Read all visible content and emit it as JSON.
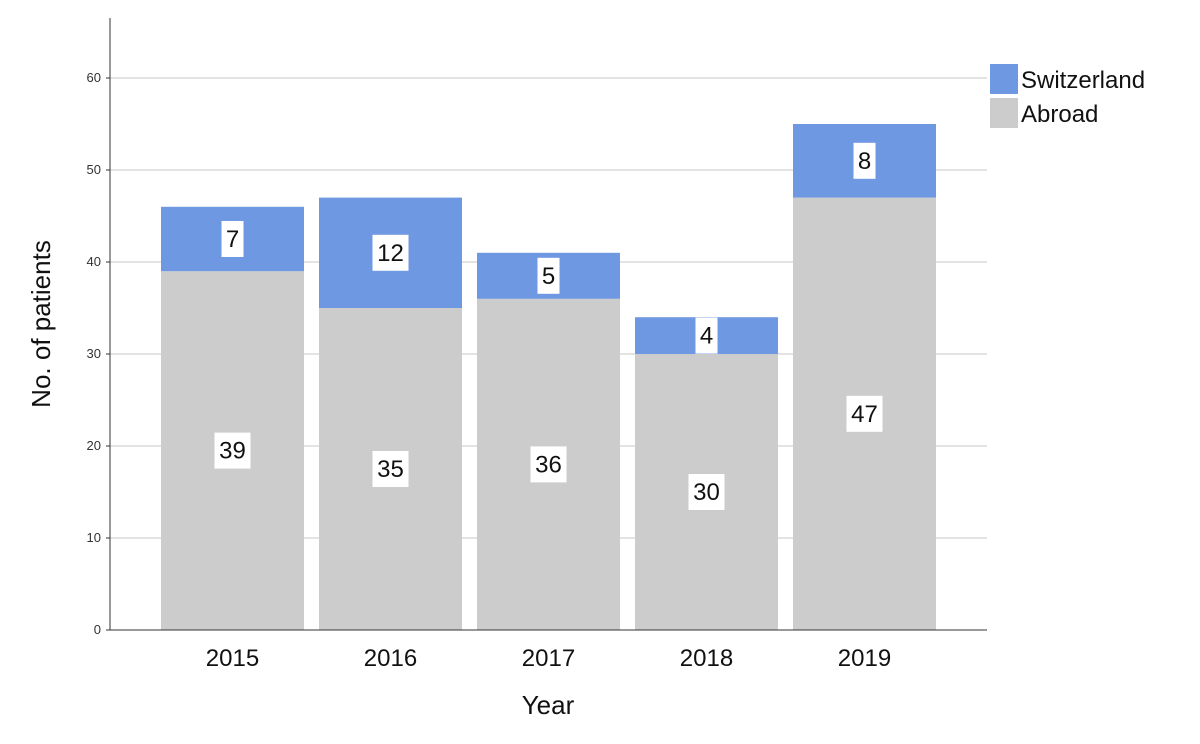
{
  "chart_data": {
    "type": "bar",
    "stacked": true,
    "categories": [
      "2015",
      "2016",
      "2017",
      "2018",
      "2019"
    ],
    "series": [
      {
        "name": "Abroad",
        "values": [
          39,
          35,
          36,
          30,
          47
        ],
        "color": "#cccccc"
      },
      {
        "name": "Switzerland",
        "values": [
          7,
          12,
          5,
          4,
          8
        ],
        "color": "#6f98e2"
      }
    ],
    "xlabel": "Year",
    "ylabel": "No. of patients",
    "ylim": [
      0,
      65
    ],
    "yticks": [
      0,
      10,
      20,
      30,
      40,
      50,
      60
    ],
    "grid": true,
    "legend_position": "top-right",
    "legend_order": [
      "Switzerland",
      "Abroad"
    ],
    "data_labels": true
  }
}
